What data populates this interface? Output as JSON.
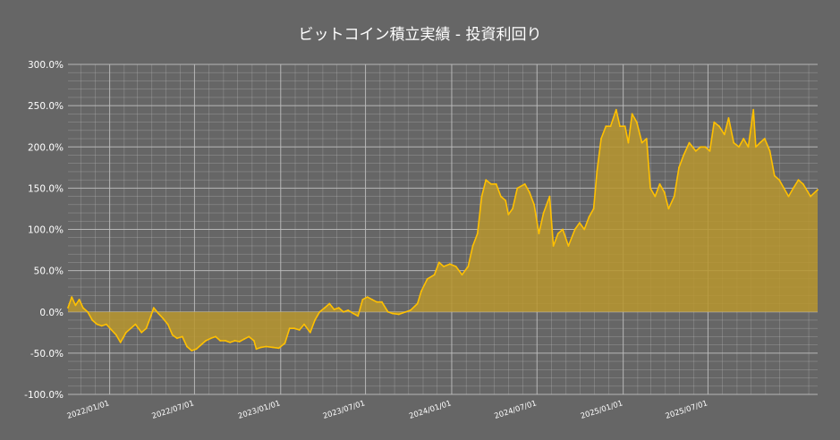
{
  "chart_data": {
    "type": "area",
    "title": "ビットコイン積立実績 - 投資利回り",
    "y_ticks": [
      "300.0%",
      "250.0%",
      "200.0%",
      "150.0%",
      "100.0%",
      "50.0%",
      "0.0%",
      "-50.0%",
      "-100.0%"
    ],
    "y_range": [
      -100,
      300
    ],
    "x_ticks": [
      {
        "date": "2022-01-01",
        "label": "2022/01/01"
      },
      {
        "date": "2022-07-01",
        "label": "2022/07/01"
      },
      {
        "date": "2023-01-01",
        "label": "2023/01/01"
      },
      {
        "date": "2023-07-01",
        "label": "2023/07/01"
      },
      {
        "date": "2024-01-01",
        "label": "2024/01/01"
      },
      {
        "date": "2024-07-01",
        "label": "2024/07/01"
      },
      {
        "date": "2025-01-01",
        "label": "2025/01/01"
      },
      {
        "date": "2025-07-01",
        "label": "2025/07/01"
      }
    ],
    "x_range": [
      "2021-10-04",
      "2026-02-20"
    ],
    "grid": true,
    "colors": {
      "line": "#FFC000",
      "fill": "#B8962E",
      "background": "#666666",
      "grid": "#BFBFBF",
      "text": "#FFFFFF"
    },
    "series": [
      {
        "points": [
          [
            "2021-10-04",
            5
          ],
          [
            "2021-10-12",
            18
          ],
          [
            "2021-10-20",
            8
          ],
          [
            "2021-10-28",
            15
          ],
          [
            "2021-11-05",
            5
          ],
          [
            "2021-11-15",
            0
          ],
          [
            "2021-11-25",
            -10
          ],
          [
            "2021-12-05",
            -15
          ],
          [
            "2021-12-15",
            -17
          ],
          [
            "2021-12-25",
            -15
          ],
          [
            "2022-01-05",
            -22
          ],
          [
            "2022-01-15",
            -28
          ],
          [
            "2022-01-24",
            -37
          ],
          [
            "2022-02-05",
            -25
          ],
          [
            "2022-02-15",
            -20
          ],
          [
            "2022-02-25",
            -15
          ],
          [
            "2022-03-10",
            -25
          ],
          [
            "2022-03-20",
            -20
          ],
          [
            "2022-03-30",
            -5
          ],
          [
            "2022-04-05",
            5
          ],
          [
            "2022-04-15",
            -2
          ],
          [
            "2022-04-25",
            -8
          ],
          [
            "2022-05-05",
            -15
          ],
          [
            "2022-05-15",
            -28
          ],
          [
            "2022-05-25",
            -32
          ],
          [
            "2022-06-05",
            -30
          ],
          [
            "2022-06-15",
            -42
          ],
          [
            "2022-06-25",
            -47
          ],
          [
            "2022-07-05",
            -45
          ],
          [
            "2022-07-15",
            -40
          ],
          [
            "2022-07-25",
            -35
          ],
          [
            "2022-08-05",
            -32
          ],
          [
            "2022-08-15",
            -30
          ],
          [
            "2022-08-25",
            -35
          ],
          [
            "2022-09-05",
            -35
          ],
          [
            "2022-09-15",
            -37
          ],
          [
            "2022-09-25",
            -35
          ],
          [
            "2022-10-05",
            -36
          ],
          [
            "2022-10-15",
            -33
          ],
          [
            "2022-10-25",
            -30
          ],
          [
            "2022-11-05",
            -35
          ],
          [
            "2022-11-10",
            -45
          ],
          [
            "2022-11-20",
            -43
          ],
          [
            "2022-12-01",
            -42
          ],
          [
            "2022-12-15",
            -43
          ],
          [
            "2022-12-28",
            -44
          ],
          [
            "2023-01-10",
            -38
          ],
          [
            "2023-01-20",
            -20
          ],
          [
            "2023-01-30",
            -20
          ],
          [
            "2023-02-10",
            -22
          ],
          [
            "2023-02-20",
            -15
          ],
          [
            "2023-03-05",
            -25
          ],
          [
            "2023-03-15",
            -10
          ],
          [
            "2023-03-25",
            0
          ],
          [
            "2023-04-05",
            5
          ],
          [
            "2023-04-15",
            10
          ],
          [
            "2023-04-25",
            3
          ],
          [
            "2023-05-05",
            5
          ],
          [
            "2023-05-15",
            0
          ],
          [
            "2023-05-25",
            2
          ],
          [
            "2023-06-05",
            -2
          ],
          [
            "2023-06-15",
            -5
          ],
          [
            "2023-06-25",
            15
          ],
          [
            "2023-07-05",
            18
          ],
          [
            "2023-07-15",
            15
          ],
          [
            "2023-07-25",
            12
          ],
          [
            "2023-08-05",
            12
          ],
          [
            "2023-08-18",
            0
          ],
          [
            "2023-08-28",
            -2
          ],
          [
            "2023-09-10",
            -3
          ],
          [
            "2023-09-25",
            0
          ],
          [
            "2023-10-05",
            2
          ],
          [
            "2023-10-20",
            10
          ],
          [
            "2023-10-28",
            25
          ],
          [
            "2023-11-10",
            40
          ],
          [
            "2023-11-25",
            45
          ],
          [
            "2023-12-05",
            60
          ],
          [
            "2023-12-15",
            55
          ],
          [
            "2023-12-28",
            58
          ],
          [
            "2024-01-10",
            55
          ],
          [
            "2024-01-23",
            45
          ],
          [
            "2024-02-05",
            55
          ],
          [
            "2024-02-15",
            80
          ],
          [
            "2024-02-25",
            95
          ],
          [
            "2024-03-05",
            140
          ],
          [
            "2024-03-14",
            160
          ],
          [
            "2024-03-25",
            155
          ],
          [
            "2024-04-05",
            155
          ],
          [
            "2024-04-15",
            140
          ],
          [
            "2024-04-25",
            135
          ],
          [
            "2024-05-01",
            118
          ],
          [
            "2024-05-10",
            125
          ],
          [
            "2024-05-20",
            150
          ],
          [
            "2024-06-05",
            155
          ],
          [
            "2024-06-15",
            145
          ],
          [
            "2024-06-25",
            130
          ],
          [
            "2024-07-05",
            95
          ],
          [
            "2024-07-15",
            120
          ],
          [
            "2024-07-28",
            140
          ],
          [
            "2024-08-05",
            80
          ],
          [
            "2024-08-15",
            95
          ],
          [
            "2024-08-25",
            100
          ],
          [
            "2024-09-06",
            80
          ],
          [
            "2024-09-20",
            100
          ],
          [
            "2024-09-30",
            108
          ],
          [
            "2024-10-10",
            100
          ],
          [
            "2024-10-20",
            115
          ],
          [
            "2024-10-30",
            125
          ],
          [
            "2024-11-06",
            170
          ],
          [
            "2024-11-15",
            210
          ],
          [
            "2024-11-25",
            225
          ],
          [
            "2024-12-05",
            225
          ],
          [
            "2024-12-17",
            245
          ],
          [
            "2024-12-25",
            225
          ],
          [
            "2025-01-05",
            225
          ],
          [
            "2025-01-12",
            205
          ],
          [
            "2025-01-20",
            240
          ],
          [
            "2025-01-30",
            230
          ],
          [
            "2025-02-10",
            205
          ],
          [
            "2025-02-20",
            210
          ],
          [
            "2025-02-28",
            150
          ],
          [
            "2025-03-10",
            140
          ],
          [
            "2025-03-20",
            155
          ],
          [
            "2025-03-30",
            145
          ],
          [
            "2025-04-08",
            125
          ],
          [
            "2025-04-20",
            140
          ],
          [
            "2025-04-30",
            175
          ],
          [
            "2025-05-10",
            190
          ],
          [
            "2025-05-22",
            205
          ],
          [
            "2025-06-05",
            195
          ],
          [
            "2025-06-15",
            200
          ],
          [
            "2025-06-25",
            200
          ],
          [
            "2025-07-05",
            195
          ],
          [
            "2025-07-14",
            230
          ],
          [
            "2025-07-25",
            225
          ],
          [
            "2025-08-05",
            215
          ],
          [
            "2025-08-14",
            235
          ],
          [
            "2025-08-25",
            205
          ],
          [
            "2025-09-05",
            200
          ],
          [
            "2025-09-15",
            210
          ],
          [
            "2025-09-25",
            200
          ],
          [
            "2025-10-06",
            245
          ],
          [
            "2025-10-11",
            200
          ],
          [
            "2025-10-20",
            205
          ],
          [
            "2025-10-30",
            210
          ],
          [
            "2025-11-10",
            195
          ],
          [
            "2025-11-20",
            165
          ],
          [
            "2025-11-30",
            160
          ],
          [
            "2025-12-10",
            150
          ],
          [
            "2025-12-20",
            140
          ],
          [
            "2025-12-30",
            150
          ],
          [
            "2026-01-10",
            160
          ],
          [
            "2026-01-20",
            155
          ],
          [
            "2026-02-05",
            140
          ],
          [
            "2026-02-20",
            148
          ]
        ]
      }
    ]
  }
}
